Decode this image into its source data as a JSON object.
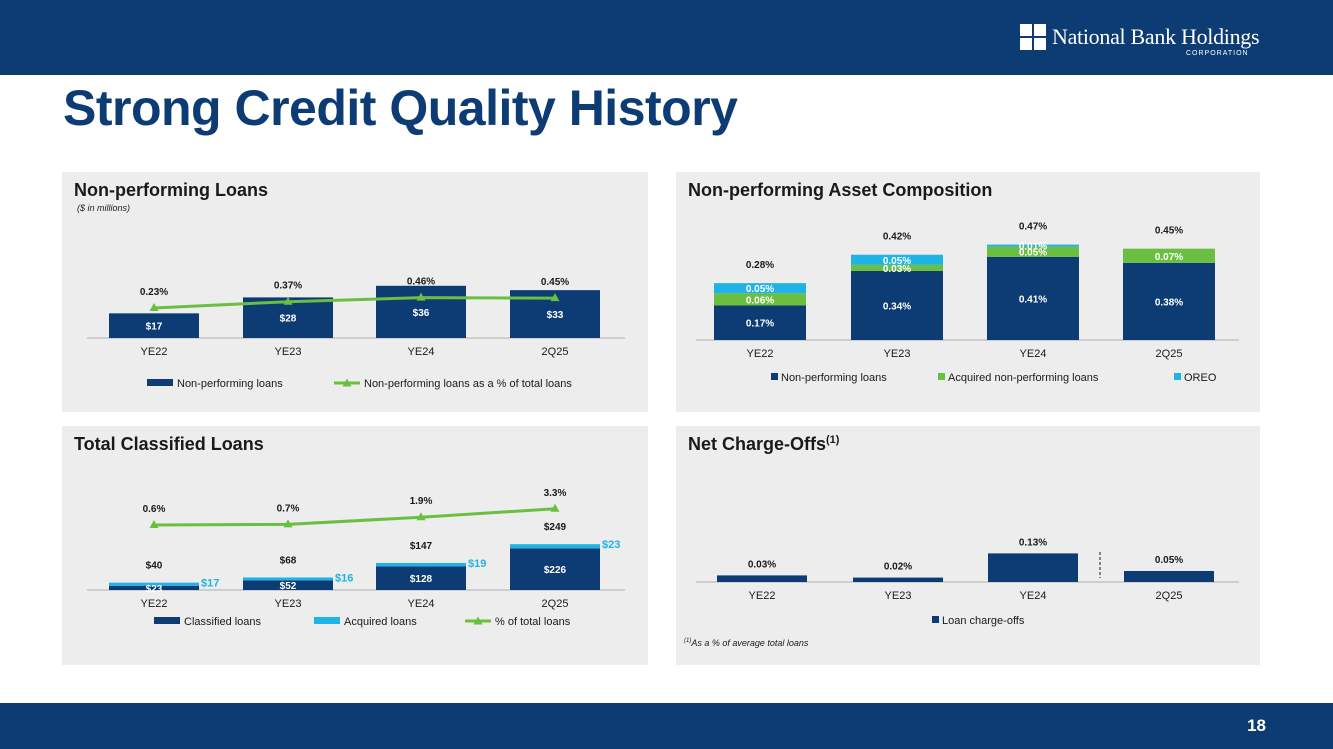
{
  "page": {
    "title": "Strong Credit Quality History",
    "page_number": "18",
    "logo": {
      "name": "National Bank Holdings",
      "sub": "CORPORATION"
    }
  },
  "colors": {
    "navy": "#0d3b73",
    "green": "#6abf40",
    "cyan": "#1fb3e6"
  },
  "chart_data": [
    {
      "id": "npl",
      "type": "bar",
      "title": "Non-performing Loans",
      "subtitle": "($ in millions)",
      "categories": [
        "YE22",
        "YE23",
        "YE24",
        "2Q25"
      ],
      "series": [
        {
          "name": "Non-performing loans",
          "type": "bar",
          "values": [
            17,
            28,
            36,
            33
          ],
          "labels": [
            "$17",
            "$28",
            "$36",
            "$33"
          ]
        },
        {
          "name": "Non-performing loans as a % of total loans",
          "type": "line",
          "values": [
            0.23,
            0.37,
            0.46,
            0.45
          ],
          "labels": [
            "0.23%",
            "0.37%",
            "0.46%",
            "0.45%"
          ]
        }
      ],
      "legend": [
        "Non-performing loans",
        "Non-performing loans as a % of total loans"
      ]
    },
    {
      "id": "npa",
      "type": "bar",
      "stacked": true,
      "title": "Non-performing Asset Composition",
      "categories": [
        "YE22",
        "YE23",
        "YE24",
        "2Q25"
      ],
      "series": [
        {
          "name": "Non-performing loans",
          "values": [
            0.17,
            0.34,
            0.41,
            0.38
          ],
          "labels": [
            "0.17%",
            "0.34%",
            "0.41%",
            "0.38%"
          ]
        },
        {
          "name": "Acquired non-performing loans",
          "values": [
            0.06,
            0.03,
            0.05,
            0.07
          ],
          "labels": [
            "0.06%",
            "0.03%",
            "0.05%",
            "0.07%"
          ]
        },
        {
          "name": "OREO",
          "values": [
            0.05,
            0.05,
            0.01,
            0.0
          ],
          "labels": [
            "0.05%",
            "0.05%",
            "0.01%",
            ""
          ]
        }
      ],
      "totals": [
        "0.28%",
        "0.42%",
        "0.47%",
        "0.45%"
      ],
      "legend": [
        "Non-performing loans",
        "Acquired non-performing loans",
        "OREO"
      ]
    },
    {
      "id": "tcl",
      "type": "bar",
      "stacked": true,
      "title": "Total Classified Loans",
      "categories": [
        "YE22",
        "YE23",
        "YE24",
        "2Q25"
      ],
      "series": [
        {
          "name": "Classified loans",
          "values": [
            23,
            52,
            128,
            226
          ],
          "labels": [
            "$23",
            "$52",
            "$128",
            "$226"
          ]
        },
        {
          "name": "Acquired loans",
          "values": [
            17,
            16,
            19,
            23
          ],
          "labels": [
            "$17",
            "$16",
            "$19",
            "$23"
          ]
        },
        {
          "name": "% of total loans",
          "type": "line",
          "values": [
            0.6,
            0.7,
            1.9,
            3.3
          ],
          "labels": [
            "0.6%",
            "0.7%",
            "1.9%",
            "3.3%"
          ]
        }
      ],
      "totals": [
        "$40",
        "$68",
        "$147",
        "$249"
      ],
      "legend": [
        "Classified loans",
        "Acquired loans",
        "% of total loans"
      ]
    },
    {
      "id": "nco",
      "type": "bar",
      "title": "Net Charge-Offs",
      "title_sup": "(1)",
      "categories": [
        "YE22",
        "YE23",
        "YE24",
        "2Q25"
      ],
      "series": [
        {
          "name": "Loan charge-offs",
          "values": [
            0.03,
            0.02,
            0.13,
            0.05
          ],
          "labels": [
            "0.03%",
            "0.02%",
            "0.13%",
            "0.05%"
          ]
        }
      ],
      "legend": [
        "Loan charge-offs"
      ],
      "footnote_marker": "(1)",
      "footnote": "As a % of average total loans"
    }
  ]
}
